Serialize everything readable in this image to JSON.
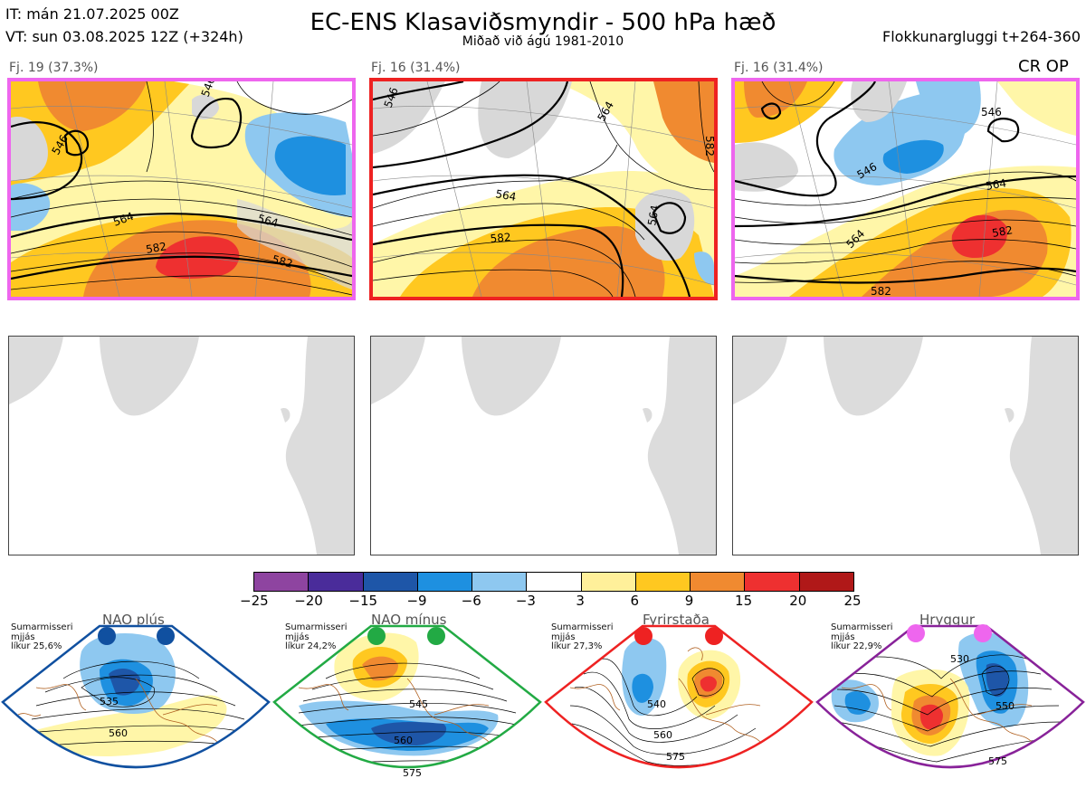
{
  "header": {
    "it": "IT: mán 21.07.2025 00Z",
    "vt": "VT: sun 03.08.2025 12Z  (+324h)",
    "title": "EC-ENS Klasaviðsmyndir - 500 hPa hæð",
    "subtitle": "Miðað við ágú 1981-2010",
    "window": "Flokkunargluggi t+264-360"
  },
  "panels": [
    {
      "label": "Fj. 19 (37.3%)",
      "border": "#ee66ee",
      "contours": [
        "546",
        "546",
        "564",
        "564",
        "582",
        "582"
      ]
    },
    {
      "label": "Fj. 16 (31.4%)",
      "border": "#ee2222",
      "contours": [
        "546",
        "564",
        "564",
        "564",
        "582",
        "582"
      ]
    },
    {
      "label": "Fj. 16 (31.4%)",
      "border": "#ee66ee",
      "contours": [
        "546",
        "546",
        "564",
        "564",
        "582",
        "582"
      ],
      "tag": "CR OP"
    }
  ],
  "colorbar": {
    "ticks": [
      "−25",
      "−20",
      "−15",
      "−9",
      "−6",
      "−3",
      "3",
      "6",
      "9",
      "15",
      "20",
      "25"
    ],
    "colors": [
      "#8e44a0",
      "#4a2c9a",
      "#1e56a8",
      "#1e90e0",
      "#8ec8f0",
      "#ffffff",
      "#fff09a",
      "#ffc820",
      "#f08a30",
      "#ee3030",
      "#b01818"
    ]
  },
  "regimes": [
    {
      "name": "NAO plús",
      "season": "Sumarmisseri",
      "avg": "mjjás",
      "prob": "líkur 25,6%",
      "dot": "#1050a0",
      "frame": "#1050a0",
      "contours": [
        "535",
        "560"
      ]
    },
    {
      "name": "NAO mínus",
      "season": "Sumarmisseri",
      "avg": "mjjás",
      "prob": "líkur 24,2%",
      "dot": "#22aa44",
      "frame": "#22aa44",
      "contours": [
        "545",
        "560",
        "575"
      ]
    },
    {
      "name": "Fyrirstaða",
      "season": "Sumarmisseri",
      "avg": "mjjás",
      "prob": "líkur 27,3%",
      "dot": "#ee2222",
      "frame": "#ee2222",
      "contours": [
        "540",
        "560",
        "575"
      ]
    },
    {
      "name": "Hryggur",
      "season": "Sumarmisseri",
      "avg": "mjjás",
      "prob": "líkur 22,9%",
      "dot": "#ee66ee",
      "frame": "#882299",
      "contours": [
        "530",
        "550",
        "575"
      ]
    }
  ]
}
